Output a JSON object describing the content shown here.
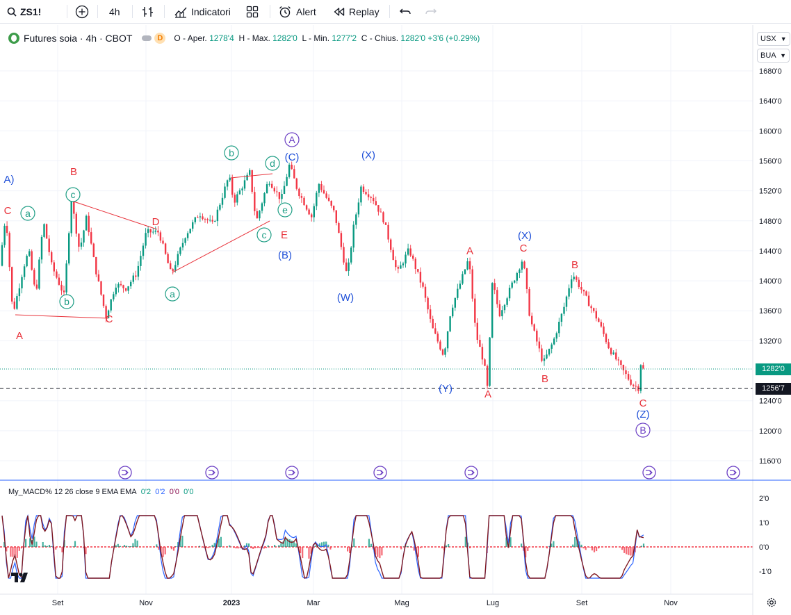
{
  "toolbar": {
    "symbol": "ZS1!",
    "interval": "4h",
    "indicators_label": "Indicatori",
    "alert_label": "Alert",
    "replay_label": "Replay"
  },
  "legend": {
    "title": "Futures soia · 4h · CBOT",
    "badge_d": "D",
    "open_label": "O - Aper.",
    "open": "1278'4",
    "high_label": "H - Max.",
    "high": "1282'0",
    "low_label": "L - Min.",
    "low": "1277'2",
    "close_label": "C - Chius.",
    "close": "1282'0",
    "change": "+3'6 (+0.29%)"
  },
  "scale": {
    "currency": "USX",
    "unit": "BUA",
    "price_ticks": [
      "1680'0",
      "1640'0",
      "1600'0",
      "1560'0",
      "1520'0",
      "1480'0",
      "1440'0",
      "1400'0",
      "1360'0",
      "1320'0",
      "1240'0",
      "1200'0",
      "1160'0"
    ],
    "macd_ticks": [
      "2'0",
      "1'0",
      "0'0",
      "-1'0"
    ],
    "current_price": "1282'0",
    "crosshair_price": "1256'7"
  },
  "time_axis": [
    "Set",
    "Nov",
    "2023",
    "Mar",
    "Mag",
    "Lug",
    "Set",
    "Nov"
  ],
  "macd_legend": {
    "name": "My_MACD% 12 26 close 9 EMA EMA",
    "v1": "0'2",
    "v2": "0'2",
    "v3": "0'0",
    "v4": "0'0"
  },
  "colors": {
    "up": "#089981",
    "down": "#f23645",
    "wave_red": "#e8323a",
    "wave_blue": "#1e4fd8",
    "wave_teal": "#1f9e85",
    "wave_purple": "#6b3fc4"
  },
  "wave_labels": [
    {
      "text": "A)",
      "color": "blue",
      "circle": false
    },
    {
      "text": "C",
      "color": "red",
      "circle": false
    },
    {
      "text": "a",
      "color": "teal",
      "circle": true
    },
    {
      "text": "B",
      "color": "red",
      "circle": false
    },
    {
      "text": "c",
      "color": "teal",
      "circle": true
    },
    {
      "text": "b",
      "color": "teal",
      "circle": true
    },
    {
      "text": "A",
      "color": "red",
      "circle": false
    },
    {
      "text": "C",
      "color": "red",
      "circle": false
    },
    {
      "text": "D",
      "color": "red",
      "circle": false
    },
    {
      "text": "a",
      "color": "teal",
      "circle": true
    },
    {
      "text": "b",
      "color": "teal",
      "circle": true
    },
    {
      "text": "d",
      "color": "teal",
      "circle": true
    },
    {
      "text": "A",
      "color": "purple",
      "circle": true
    },
    {
      "text": "(C)",
      "color": "blue",
      "circle": false
    },
    {
      "text": "e",
      "color": "teal",
      "circle": true
    },
    {
      "text": "c",
      "color": "teal",
      "circle": true
    },
    {
      "text": "E",
      "color": "red",
      "circle": false
    },
    {
      "text": "(B)",
      "color": "blue",
      "circle": false
    },
    {
      "text": "(X)",
      "color": "blue",
      "circle": false
    },
    {
      "text": "(W)",
      "color": "blue",
      "circle": false
    },
    {
      "text": "A",
      "color": "red",
      "circle": false
    },
    {
      "text": "(Y)",
      "color": "blue",
      "circle": false
    },
    {
      "text": "(X)",
      "color": "blue",
      "circle": false
    },
    {
      "text": "C",
      "color": "red",
      "circle": false
    },
    {
      "text": "B",
      "color": "red",
      "circle": false
    },
    {
      "text": "A",
      "color": "red",
      "circle": false
    },
    {
      "text": "B",
      "color": "red",
      "circle": false
    },
    {
      "text": "C",
      "color": "red",
      "circle": false
    },
    {
      "text": "(Z)",
      "color": "blue",
      "circle": false
    },
    {
      "text": "B",
      "color": "purple",
      "circle": true
    }
  ]
}
